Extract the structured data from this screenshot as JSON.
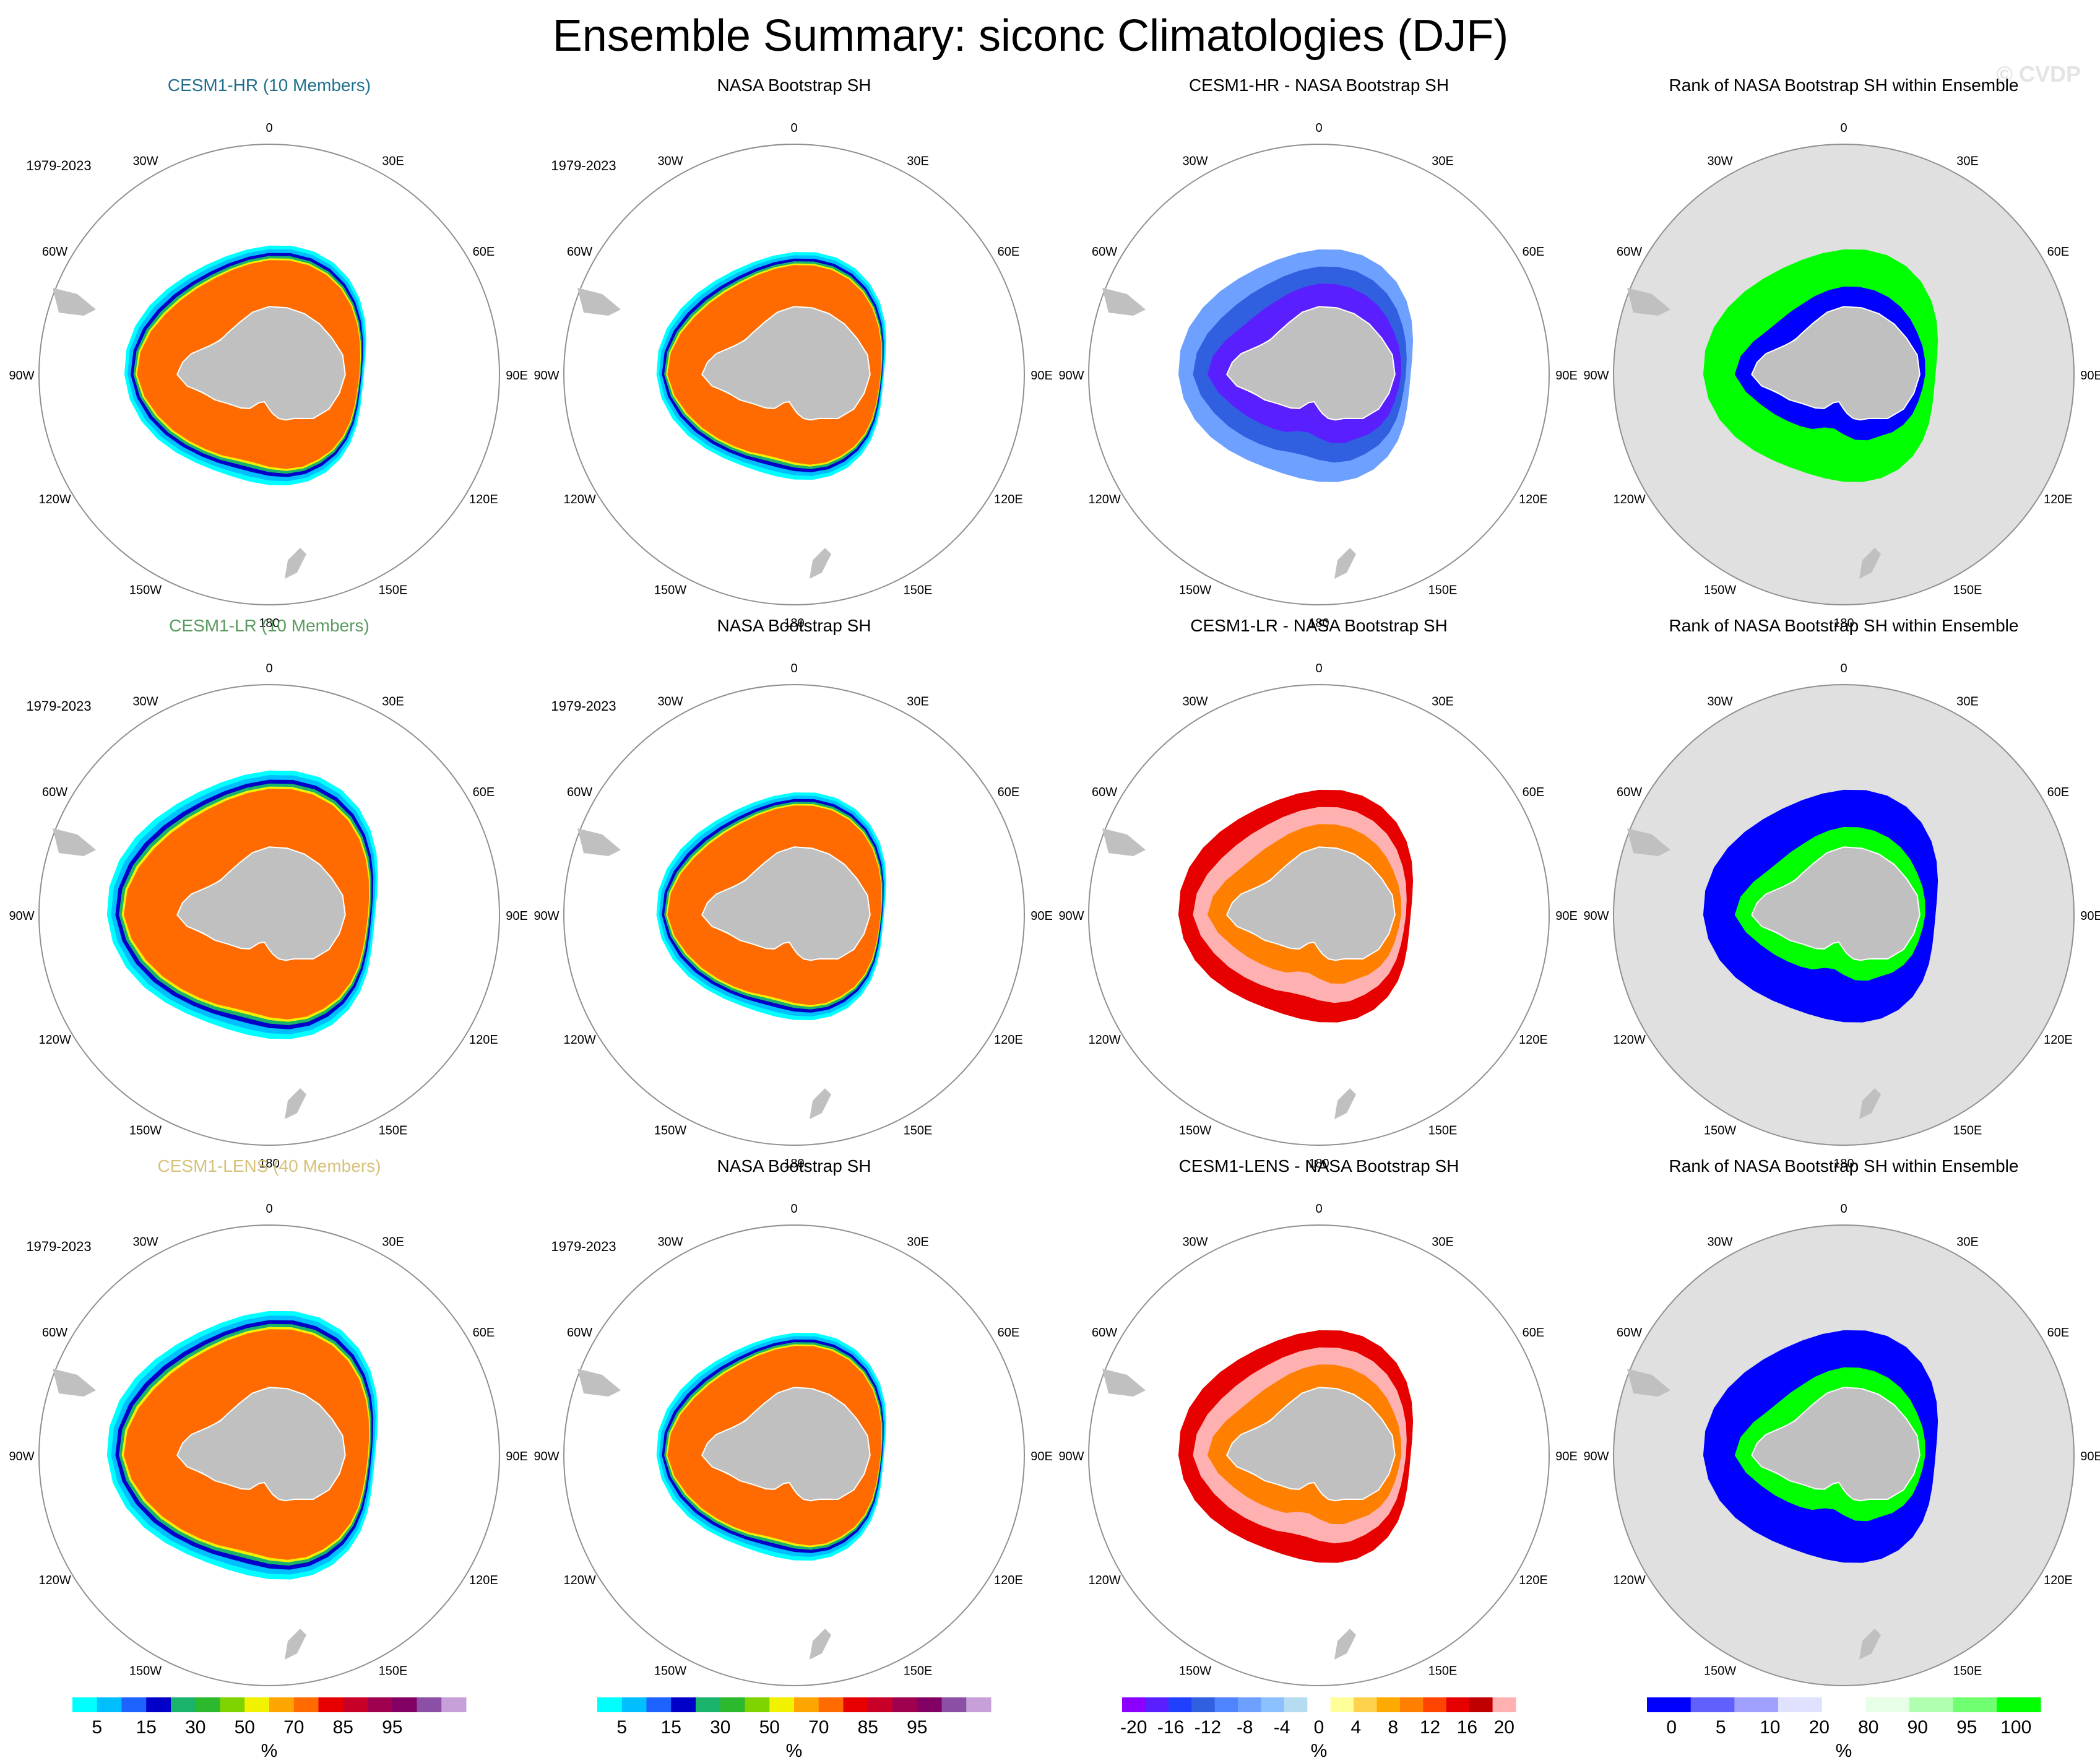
{
  "figure": {
    "title": "Ensemble Summary: siconc Climatologies (DJF)",
    "watermark": "© CVDP"
  },
  "colors": {
    "row_titles": [
      "#1f6f8b",
      "#5a9a60",
      "#d6c27a"
    ],
    "land": "#c0c0c0",
    "rank_background": "#e0e0e0",
    "circle": "#909090",
    "clim_palette": [
      "#00ffff",
      "#00bfff",
      "#1e63ff",
      "#0000c8",
      "#19b36b",
      "#2db92d",
      "#7fd400",
      "#f2f200",
      "#ffa500",
      "#ff6b00",
      "#e60000",
      "#c80028",
      "#a00050",
      "#820064",
      "#8c4fa6",
      "#c7a0d9"
    ],
    "diff_palette": [
      "#8b00ff",
      "#5a1fff",
      "#2040ff",
      "#3060e0",
      "#4f84ff",
      "#6ea0ff",
      "#8cc0ff",
      "#b5dcf0",
      "#ffffff",
      "#ffff99",
      "#ffd24d",
      "#ffaa00",
      "#ff7f00",
      "#ff4500",
      "#e60000",
      "#c00000",
      "#ffb0b0"
    ],
    "rank_palette": [
      "#0000ff",
      "#6060ff",
      "#a0a0ff",
      "#e0e0ff",
      "#ffffff",
      "#e6ffe6",
      "#b0ffb0",
      "#70ff70",
      "#00ff00"
    ]
  },
  "rows": [
    {
      "panels": [
        {
          "title": "CESM1-HR (10 Members)",
          "period": "1979-2023",
          "kind": "clim"
        },
        {
          "title": "NASA Bootstrap SH",
          "period": "1979-2023",
          "kind": "clim"
        },
        {
          "title": "CESM1-HR - NASA Bootstrap SH",
          "period": "",
          "kind": "diff"
        },
        {
          "title": "Rank of NASA Bootstrap SH within Ensemble",
          "period": "",
          "kind": "rank"
        }
      ]
    },
    {
      "panels": [
        {
          "title": "CESM1-LR (10 Members)",
          "period": "1979-2023",
          "kind": "clim"
        },
        {
          "title": "NASA Bootstrap SH",
          "period": "1979-2023",
          "kind": "clim"
        },
        {
          "title": "CESM1-LR - NASA Bootstrap SH",
          "period": "",
          "kind": "diff"
        },
        {
          "title": "Rank of NASA Bootstrap SH within Ensemble",
          "period": "",
          "kind": "rank"
        }
      ]
    },
    {
      "panels": [
        {
          "title": "CESM1-LENS (40 Members)",
          "period": "1979-2023",
          "kind": "clim"
        },
        {
          "title": "NASA Bootstrap SH",
          "period": "1979-2023",
          "kind": "clim"
        },
        {
          "title": "CESM1-LENS - NASA Bootstrap SH",
          "period": "",
          "kind": "diff"
        },
        {
          "title": "Rank of NASA Bootstrap SH within Ensemble",
          "period": "",
          "kind": "rank"
        }
      ]
    }
  ],
  "map_labels": [
    {
      "text": "0",
      "lon": 0
    },
    {
      "text": "30E",
      "lon": 30
    },
    {
      "text": "60E",
      "lon": 60
    },
    {
      "text": "90E",
      "lon": 90
    },
    {
      "text": "120E",
      "lon": 120
    },
    {
      "text": "150E",
      "lon": 150
    },
    {
      "text": "180",
      "lon": 180
    },
    {
      "text": "150W",
      "lon": -150
    },
    {
      "text": "120W",
      "lon": -120
    },
    {
      "text": "90W",
      "lon": -90
    },
    {
      "text": "60W",
      "lon": -60
    },
    {
      "text": "30W",
      "lon": -30
    }
  ],
  "colorbars": [
    {
      "unit": "%",
      "labels": [
        "5",
        "15",
        "30",
        "50",
        "70",
        "85",
        "95"
      ],
      "kind": "clim"
    },
    {
      "unit": "%",
      "labels": [
        "5",
        "15",
        "30",
        "50",
        "70",
        "85",
        "95"
      ],
      "kind": "clim"
    },
    {
      "unit": "%",
      "labels": [
        "-20",
        "-16",
        "-12",
        "-8",
        "-4",
        "0",
        "4",
        "8",
        "12",
        "16",
        "20"
      ],
      "kind": "diff"
    },
    {
      "unit": "%",
      "labels": [
        "0",
        "5",
        "10",
        "20",
        "80",
        "90",
        "95",
        "100"
      ],
      "kind": "rank"
    }
  ],
  "chart_data": [
    {
      "type": "heatmap",
      "title": "CESM1-HR (10 Members)",
      "subtitle": "1979-2023",
      "variable": "siconc",
      "season": "DJF",
      "projection": "south polar stereographic",
      "units": "%"
    },
    {
      "type": "heatmap",
      "title": "NASA Bootstrap SH",
      "subtitle": "1979-2023",
      "variable": "siconc",
      "season": "DJF",
      "units": "%"
    },
    {
      "type": "heatmap",
      "title": "CESM1-HR - NASA Bootstrap SH",
      "variable": "siconc difference",
      "season": "DJF",
      "units": "%",
      "range": [
        -20,
        20
      ]
    },
    {
      "type": "heatmap",
      "title": "Rank of NASA Bootstrap SH within Ensemble",
      "units": "%",
      "range": [
        0,
        100
      ]
    },
    {
      "type": "heatmap",
      "title": "CESM1-LR (10 Members)",
      "subtitle": "1979-2023",
      "variable": "siconc",
      "season": "DJF",
      "units": "%"
    },
    {
      "type": "heatmap",
      "title": "NASA Bootstrap SH",
      "subtitle": "1979-2023",
      "variable": "siconc",
      "season": "DJF",
      "units": "%"
    },
    {
      "type": "heatmap",
      "title": "CESM1-LR - NASA Bootstrap SH",
      "variable": "siconc difference",
      "season": "DJF",
      "units": "%",
      "range": [
        -20,
        20
      ]
    },
    {
      "type": "heatmap",
      "title": "Rank of NASA Bootstrap SH within Ensemble",
      "units": "%",
      "range": [
        0,
        100
      ]
    },
    {
      "type": "heatmap",
      "title": "CESM1-LENS (40 Members)",
      "subtitle": "1979-2023",
      "variable": "siconc",
      "season": "DJF",
      "units": "%"
    },
    {
      "type": "heatmap",
      "title": "NASA Bootstrap SH",
      "subtitle": "1979-2023",
      "variable": "siconc",
      "season": "DJF",
      "units": "%"
    },
    {
      "type": "heatmap",
      "title": "CESM1-LENS - NASA Bootstrap SH",
      "variable": "siconc difference",
      "season": "DJF",
      "units": "%",
      "range": [
        -20,
        20
      ]
    },
    {
      "type": "heatmap",
      "title": "Rank of NASA Bootstrap SH within Ensemble",
      "units": "%",
      "range": [
        0,
        100
      ]
    }
  ]
}
